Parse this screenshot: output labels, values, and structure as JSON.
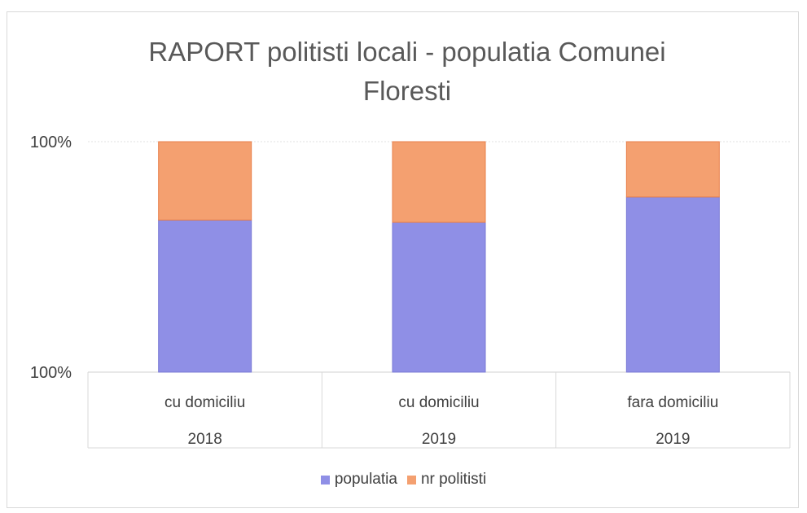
{
  "chart_data": {
    "type": "bar",
    "stacked": true,
    "title": "RAPORT politisti locali - populatia Comunei Floresti",
    "title_lines": [
      "RAPORT politisti locali - populatia Comunei",
      "Floresti"
    ],
    "categories": [
      [
        "cu domiciliu",
        "2018"
      ],
      [
        "cu domiciliu",
        "2019"
      ],
      [
        "fara domiciliu",
        "2019"
      ]
    ],
    "series": [
      {
        "name": "populatia",
        "color": "#8f8fe6",
        "values": [
          0.66,
          0.65,
          0.76
        ]
      },
      {
        "name": "nr politisti",
        "color": "#f4a070",
        "values": [
          0.34,
          0.35,
          0.24
        ]
      }
    ],
    "y_tick_labels": [
      "100%",
      "100%"
    ],
    "ylim": [
      0,
      1
    ],
    "grid": true,
    "legend_position": "bottom"
  }
}
